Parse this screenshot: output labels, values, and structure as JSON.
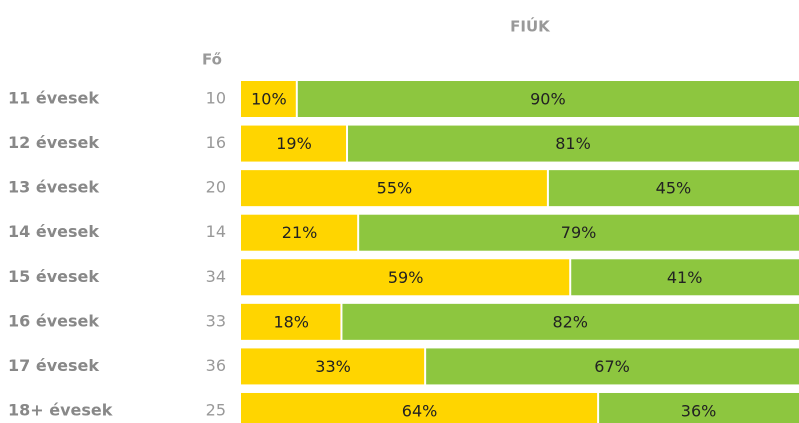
{
  "chart_data": {
    "type": "stacked-bar-100",
    "title": "FIÚK",
    "categories": [
      "11 évesek",
      "12 évesek",
      "13 évesek",
      "14 évesek",
      "15 évesek",
      "16 évesek",
      "17 évesek",
      "18+ évesek"
    ],
    "counts": {
      "label": "Fő",
      "values": [
        10,
        16,
        20,
        14,
        34,
        33,
        36,
        25
      ]
    },
    "xlim": [
      0,
      100
    ],
    "series": [
      {
        "color": "#ffd500",
        "values": [
          10,
          19,
          55,
          21,
          59,
          18,
          33,
          64
        ],
        "value_labels": [
          "10%",
          "19%",
          "55%",
          "21%",
          "59%",
          "18%",
          "33%",
          "64%"
        ]
      },
      {
        "color": "#8dc63f",
        "values": [
          90,
          81,
          45,
          79,
          41,
          82,
          67,
          36
        ],
        "value_labels": [
          "90%",
          "81%",
          "45%",
          "79%",
          "41%",
          "82%",
          "67%",
          "36%"
        ]
      }
    ]
  }
}
